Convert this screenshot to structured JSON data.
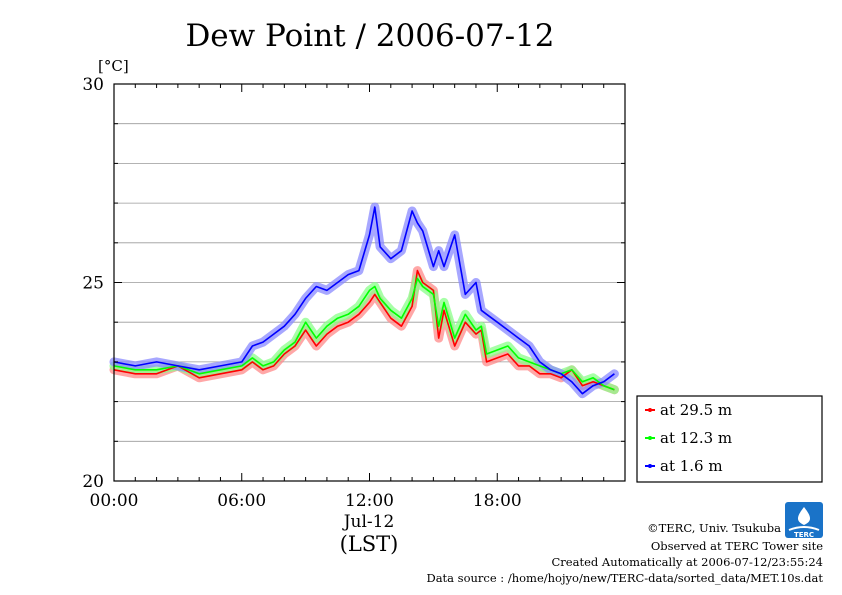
{
  "chart_data": {
    "type": "line",
    "title": "Dew Point / 2006-07-12",
    "ylabel": "[°C]",
    "xlabel": "Jul-12",
    "x_unit_label": "(LST)",
    "ylim": [
      20,
      30
    ],
    "xlim": [
      0,
      24
    ],
    "y_ticks": [
      20,
      25,
      30
    ],
    "y_tick_labels": [
      "20",
      "25",
      "30"
    ],
    "x_ticks": [
      0,
      6,
      12,
      18
    ],
    "x_tick_labels": [
      "00:00",
      "06:00",
      "12:00",
      "18:00"
    ],
    "grid": true,
    "legend_position": "right",
    "x": [
      0,
      1,
      2,
      3,
      4,
      5,
      6,
      6.5,
      7,
      7.5,
      8,
      8.5,
      9,
      9.5,
      10,
      10.5,
      11,
      11.5,
      12,
      12.25,
      12.5,
      13,
      13.5,
      14,
      14.25,
      14.5,
      15,
      15.25,
      15.5,
      16,
      16.5,
      17,
      17.25,
      17.5,
      18,
      18.5,
      19,
      19.5,
      20,
      20.5,
      21,
      21.5,
      22,
      22.5,
      23,
      23.5
    ],
    "series": [
      {
        "name": "at 29.5 m",
        "color": "#ff0000",
        "values": [
          22.8,
          22.7,
          22.7,
          22.9,
          22.6,
          22.7,
          22.8,
          23.0,
          22.8,
          22.9,
          23.2,
          23.4,
          23.8,
          23.4,
          23.7,
          23.9,
          24.0,
          24.2,
          24.5,
          24.7,
          24.5,
          24.1,
          23.9,
          24.4,
          25.3,
          25.0,
          24.8,
          23.6,
          24.3,
          23.4,
          24.0,
          23.7,
          23.8,
          23.0,
          23.1,
          23.2,
          22.9,
          22.9,
          22.7,
          22.7,
          22.6,
          22.8,
          22.4,
          22.5,
          22.4,
          22.3
        ]
      },
      {
        "name": "at 12.3 m",
        "color": "#00ff00",
        "values": [
          22.9,
          22.8,
          22.8,
          22.9,
          22.7,
          22.8,
          22.9,
          23.1,
          22.9,
          23.0,
          23.3,
          23.5,
          24.0,
          23.6,
          23.9,
          24.1,
          24.2,
          24.4,
          24.8,
          24.9,
          24.6,
          24.3,
          24.1,
          24.6,
          25.1,
          24.9,
          24.7,
          23.9,
          24.5,
          23.6,
          24.2,
          23.8,
          23.9,
          23.2,
          23.3,
          23.4,
          23.1,
          23.0,
          22.9,
          22.8,
          22.7,
          22.8,
          22.5,
          22.6,
          22.4,
          22.3
        ]
      },
      {
        "name": "at 1.6 m",
        "color": "#0000ff",
        "values": [
          23.0,
          22.9,
          23.0,
          22.9,
          22.8,
          22.9,
          23.0,
          23.4,
          23.5,
          23.7,
          23.9,
          24.2,
          24.6,
          24.9,
          24.8,
          25.0,
          25.2,
          25.3,
          26.2,
          26.9,
          25.9,
          25.6,
          25.8,
          26.8,
          26.5,
          26.3,
          25.4,
          25.8,
          25.4,
          26.2,
          24.7,
          25.0,
          24.3,
          24.2,
          24.0,
          23.8,
          23.6,
          23.4,
          23.0,
          22.8,
          22.7,
          22.5,
          22.2,
          22.4,
          22.5,
          22.7
        ]
      }
    ]
  },
  "footer": {
    "copyright": "©TERC, Univ. Tsukuba",
    "observed": "Observed at TERC Tower site",
    "created": "Created Automatically at 2006-07-12/23:55:24",
    "source": "Data source : /home/hojyo/new/TERC-data/sorted_data/MET.10s.dat",
    "logo_text": "TERC"
  }
}
